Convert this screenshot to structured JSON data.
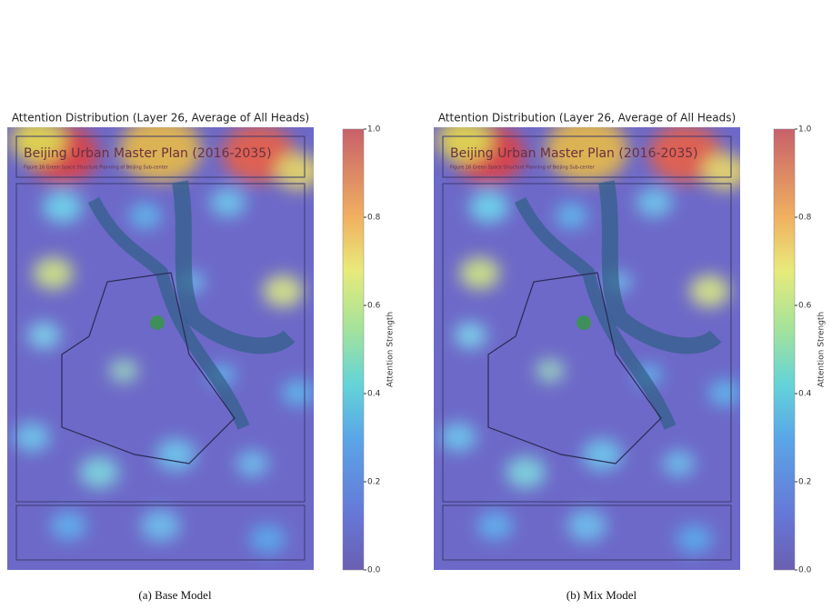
{
  "chart_data": [
    {
      "type": "heatmap",
      "title": "Attention Distribution (Layer 26, Average of All Heads)",
      "image_title": "Beijing Urban Master Plan (2016-2035)",
      "image_subtitle": "Figure 16 Green Space Structure Planning of Beijing Sub-center",
      "colorbar_label": "Attention Strength",
      "colormap": "jet",
      "clim": [
        0,
        1
      ],
      "cticks": [
        {
          "value": 0,
          "label": "0.0"
        },
        0.2,
        0.4,
        0.6,
        0.8,
        {
          "value": 1,
          "label": "1.0"
        }
      ],
      "caption": "(a) Base Model"
    },
    {
      "type": "heatmap",
      "title": "Attention Distribution (Layer 26, Average of All Heads)",
      "image_title": "Beijing Urban Master Plan (2016-2035)",
      "image_subtitle": "Figure 16 Green Space Structure Planning of Beijing Sub-center",
      "colorbar_label": "Attention Strength",
      "colormap": "jet",
      "clim": [
        0,
        1
      ],
      "cticks": [
        {
          "value": 0,
          "label": "0.0"
        },
        0.2,
        0.4,
        0.6,
        0.8,
        {
          "value": 1,
          "label": "1.0"
        }
      ],
      "caption": "(b) Mix Model"
    }
  ]
}
